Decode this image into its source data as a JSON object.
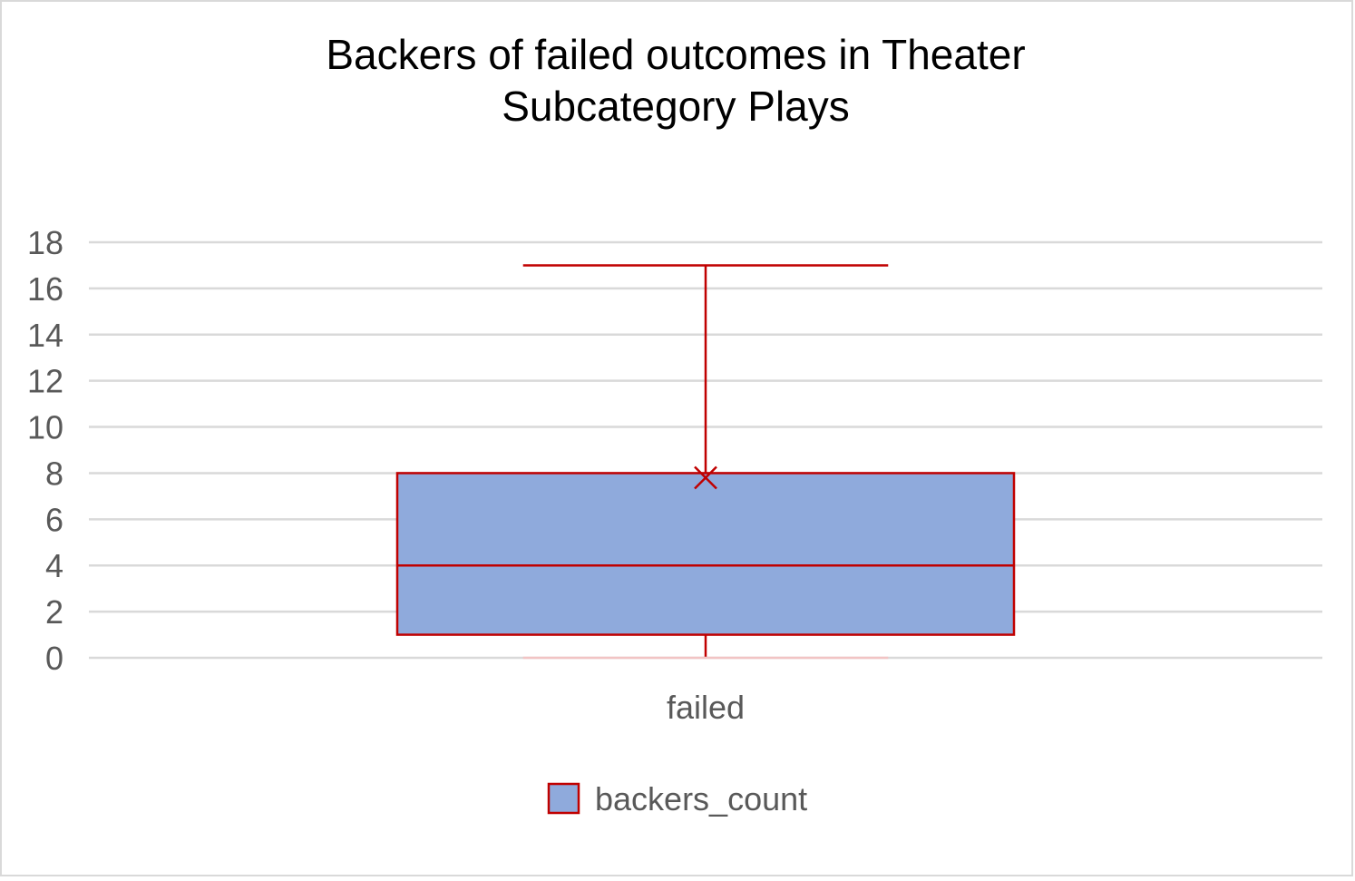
{
  "chart_data": {
    "type": "box",
    "title_lines": [
      "Backers of failed outcomes in Theater",
      "Subcategory Plays"
    ],
    "xlabel": "",
    "ylabel": "",
    "ylim": [
      0,
      18
    ],
    "yticks": [
      0,
      2,
      4,
      6,
      8,
      10,
      12,
      14,
      16,
      18
    ],
    "gridlines": true,
    "legend_position": "bottom",
    "categories": [
      "failed"
    ],
    "series": [
      {
        "name": "backers_count",
        "boxes": [
          {
            "category": "failed",
            "whisker_low": 0,
            "q1": 1,
            "median": 4,
            "q3": 8,
            "whisker_high": 17,
            "mean": 7.8
          }
        ]
      }
    ],
    "colors": {
      "box_fill": "#8faadc",
      "box_line": "#c00000",
      "grid": "#d9d9d9",
      "tick_text": "#595959",
      "title_text": "#000000",
      "frame": "#d9d9d9"
    }
  }
}
